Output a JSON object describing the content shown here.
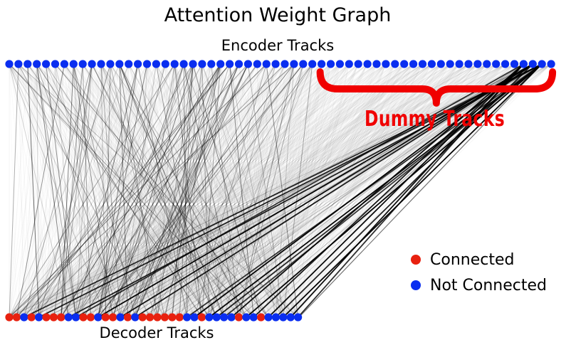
{
  "title": "Attention Weight Graph",
  "encoder_label": "Encoder Tracks",
  "decoder_label": "Decoder Tracks",
  "dummy_label": "Dummy Tracks",
  "legend": [
    {
      "label": "Connected",
      "color": "#e8210f"
    },
    {
      "label": "Not Connected",
      "color": "#0a2ef0"
    }
  ],
  "colors": {
    "connected": "#e8210f",
    "not_connected": "#0a2ef0",
    "bracket": "#f00000",
    "edge": "#000000"
  },
  "graph": {
    "encoder_count": 60,
    "dummy_start_index": 34,
    "decoder_states": [
      "c",
      "c",
      "b",
      "c",
      "b",
      "c",
      "c",
      "c",
      "b",
      "b",
      "c",
      "c",
      "b",
      "c",
      "c",
      "b",
      "c",
      "b",
      "c",
      "c",
      "c",
      "c",
      "c",
      "c",
      "b",
      "b",
      "c",
      "b",
      "b",
      "b",
      "b",
      "c",
      "b",
      "b",
      "c",
      "b",
      "b",
      "b",
      "b",
      "b"
    ]
  }
}
